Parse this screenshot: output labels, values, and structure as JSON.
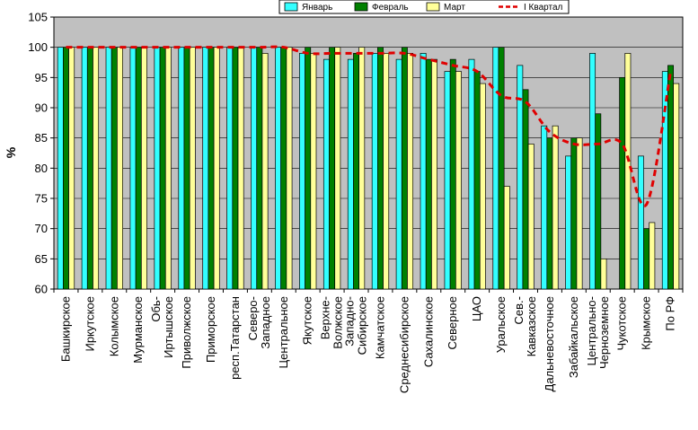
{
  "chart_data": {
    "type": "bar",
    "title": "",
    "xlabel": "",
    "ylabel": "%",
    "ylim": [
      60,
      105
    ],
    "yticks": [
      "60",
      "65",
      "70",
      "75",
      "80",
      "85",
      "90",
      "95",
      "100",
      "105"
    ],
    "grid": true,
    "legend_position": "top-right",
    "categories": [
      "Башкирское",
      "Иркутское",
      "Колымское",
      "Мурманское",
      "Обь-Иртышское",
      "Приволжское",
      "Приморское",
      "респ.Татарстан",
      "Северо-Западное",
      "Центральное",
      "Якутское",
      "Верхне-Волжское",
      "Западно-Сибирское",
      "Камчатское",
      "Среднесибирское",
      "Сахалинское",
      "Северное",
      "ЦАО",
      "Уральское",
      "Сев.-Кавказское",
      "Дальневосточное",
      "Забайкальское",
      "Центрально-Черноземное",
      "Чукотское",
      "Крымское",
      "По РФ"
    ],
    "category_label_lines": [
      [
        "Башкирское"
      ],
      [
        "Иркутское"
      ],
      [
        "Колымское"
      ],
      [
        "Мурманское"
      ],
      [
        "Обь-",
        "Иртышское"
      ],
      [
        "Приволжское"
      ],
      [
        "Приморское"
      ],
      [
        "респ.Татарстан"
      ],
      [
        "Северо-",
        "Западное"
      ],
      [
        "Центральное"
      ],
      [
        "Якутское"
      ],
      [
        "Верхне-",
        "Волжское"
      ],
      [
        "Западно-",
        "Сибирское"
      ],
      [
        "Камчатское"
      ],
      [
        "Среднесибирское"
      ],
      [
        "Сахалинское"
      ],
      [
        "Северное"
      ],
      [
        "ЦАО"
      ],
      [
        "Уральское"
      ],
      [
        "Сев.-",
        "Кавказское"
      ],
      [
        "Дальневосточное"
      ],
      [
        "Забайкальское"
      ],
      [
        "Центрально-",
        "Черноземное"
      ],
      [
        "Чукотское"
      ],
      [
        "Крымское"
      ],
      [
        "По РФ"
      ]
    ],
    "series": [
      {
        "name": "Январь",
        "color": "#33FFFF",
        "values": [
          100,
          100,
          100,
          100,
          100,
          100,
          100,
          100,
          100,
          100,
          99,
          98,
          98,
          99,
          98,
          99,
          96,
          98,
          100,
          97,
          87,
          82,
          99,
          60,
          82,
          96
        ]
      },
      {
        "name": "Февраль",
        "color": "#008000",
        "values": [
          100,
          100,
          100,
          100,
          100,
          100,
          100,
          100,
          100,
          100,
          100,
          100,
          99,
          100,
          100,
          98,
          98,
          96,
          100,
          93,
          85,
          85,
          89,
          95,
          70,
          97
        ]
      },
      {
        "name": "Март",
        "color": "#FFFF99",
        "values": [
          100,
          100,
          100,
          100,
          100,
          100,
          100,
          100,
          99,
          100,
          99,
          100,
          100,
          99,
          99,
          98,
          96,
          94,
          77,
          84,
          87,
          85,
          65,
          99,
          71,
          94
        ]
      },
      {
        "name": "I Квартал",
        "type": "line",
        "color": "#E00000",
        "values": [
          100,
          100,
          100,
          100,
          100,
          100,
          100,
          100,
          100,
          100,
          99,
          99,
          99,
          99,
          99,
          98,
          97,
          96,
          92,
          91,
          86,
          84,
          84,
          84,
          74,
          96
        ]
      }
    ]
  }
}
